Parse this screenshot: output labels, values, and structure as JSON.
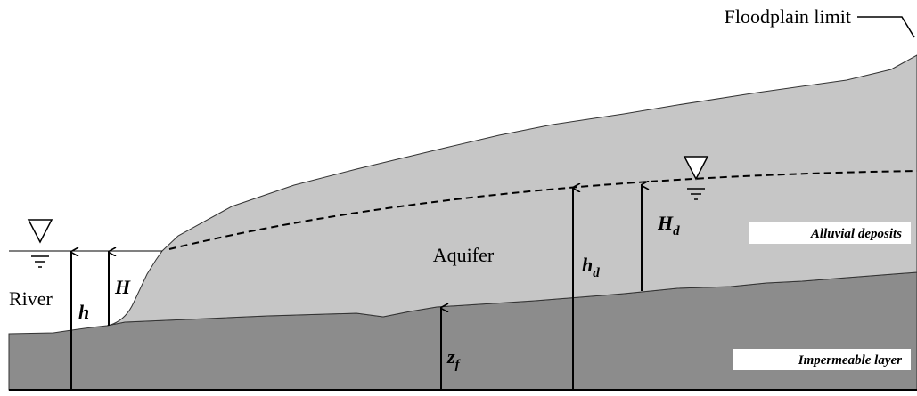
{
  "labels": {
    "floodplain": "Floodplain limit",
    "aquifer": "Aquifer",
    "river": "River",
    "alluvial": "Alluvial deposits",
    "impermeable": "Impermeable layer"
  },
  "symbols": {
    "h": "h",
    "H": "H",
    "hd": {
      "main": "h",
      "sub": "d"
    },
    "Hd": {
      "main": "H",
      "sub": "d"
    },
    "zf": {
      "main": "z",
      "sub": "f"
    }
  }
}
